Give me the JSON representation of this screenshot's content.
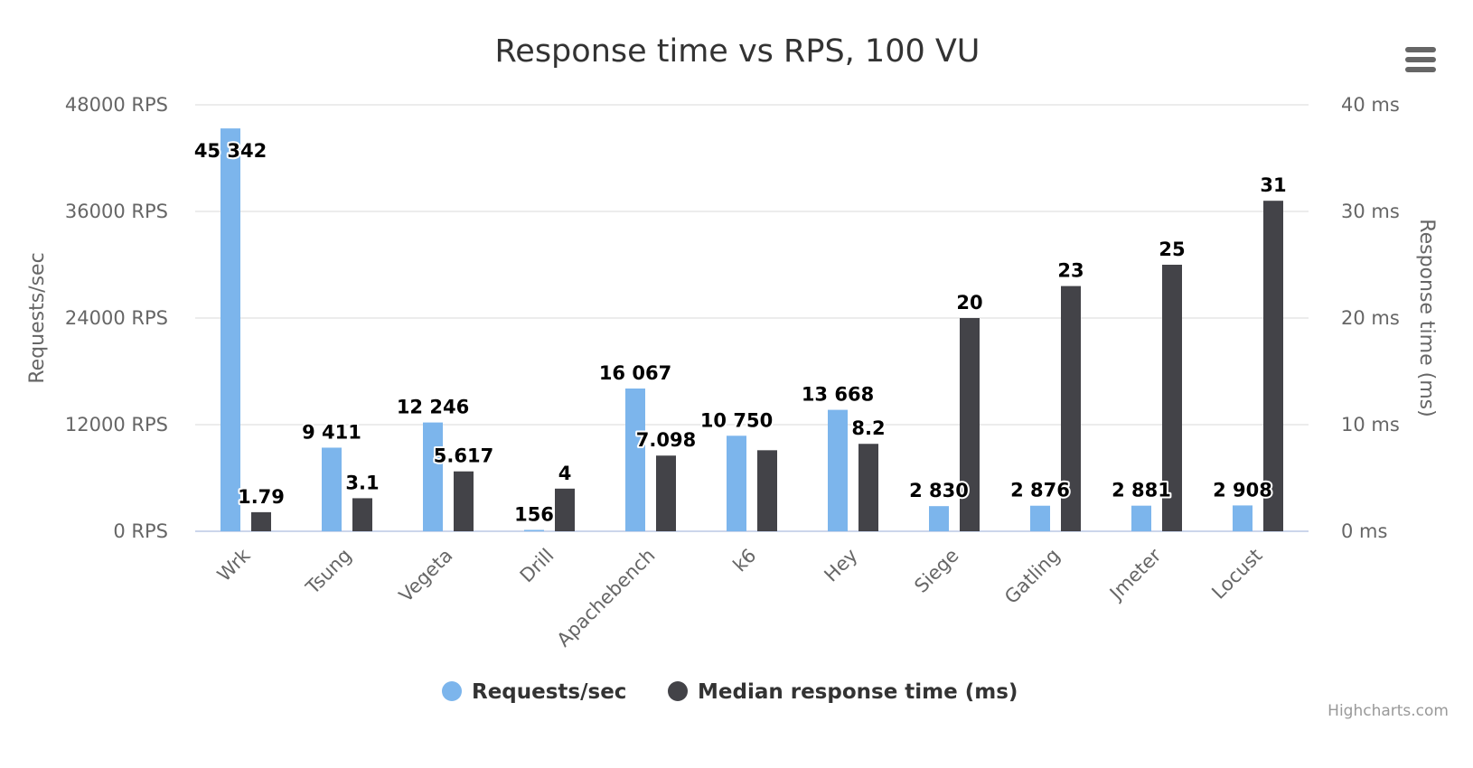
{
  "chart_data": {
    "type": "bar",
    "title": "Response time vs RPS, 100 VU",
    "categories": [
      "Wrk",
      "Tsung",
      "Vegeta",
      "Drill",
      "Apachebench",
      "k6",
      "Hey",
      "Siege",
      "Gatling",
      "Jmeter",
      "Locust"
    ],
    "series": [
      {
        "name": "Requests/sec",
        "axis": "left",
        "color": "#7cb5ec",
        "values": [
          45342,
          9411,
          12246,
          156,
          16067,
          10750,
          13668,
          2830,
          2876,
          2881,
          2908
        ],
        "data_labels": [
          "45 342",
          "9 411",
          "12 246",
          "156",
          "16 067",
          "10 750",
          "13 668",
          "2 830",
          "2 876",
          "2 881",
          "2 908"
        ]
      },
      {
        "name": "Median response time (ms)",
        "axis": "right",
        "color": "#434348",
        "values": [
          1.79,
          3.1,
          5.617,
          4,
          7.098,
          7.6,
          8.2,
          20,
          23,
          25,
          31
        ],
        "data_labels": [
          "1.79",
          "3.1",
          "5.617",
          "4",
          "7.098",
          null,
          "8.2",
          "20",
          "23",
          "25",
          "31"
        ]
      }
    ],
    "y_left": {
      "label": "Requests/sec",
      "ylim": [
        0,
        48000
      ],
      "ticks": [
        0,
        12000,
        24000,
        36000,
        48000
      ],
      "tick_labels": [
        "0 RPS",
        "12000 RPS",
        "24000 RPS",
        "36000 RPS",
        "48000 RPS"
      ]
    },
    "y_right": {
      "label": "Response time (ms)",
      "ylim": [
        0,
        40
      ],
      "ticks": [
        0,
        10,
        20,
        30,
        40
      ],
      "tick_labels": [
        "0 ms",
        "10 ms",
        "20 ms",
        "30 ms",
        "40 ms"
      ]
    },
    "grid": true,
    "legend_position": "bottom-center",
    "credits": "Highcharts.com"
  },
  "menu_icon": "hamburger-menu-icon",
  "colors": {
    "title": "#333333",
    "axis_text": "#666666",
    "grid": "#e6e6e6",
    "baseline": "#ccd6eb",
    "data_label": "#000000",
    "credits": "#999999",
    "menu": "#666666"
  }
}
